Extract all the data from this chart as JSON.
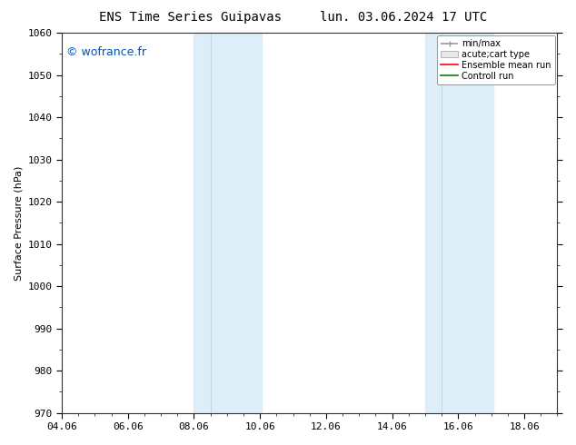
{
  "title_left": "ENS Time Series Guipavas",
  "title_right": "lun. 03.06.2024 17 UTC",
  "ylabel": "Surface Pressure (hPa)",
  "watermark": "© wofrance.fr",
  "ylim": [
    970,
    1060
  ],
  "yticks": [
    970,
    980,
    990,
    1000,
    1010,
    1020,
    1030,
    1040,
    1050,
    1060
  ],
  "xtick_labels": [
    "04.06",
    "06.06",
    "08.06",
    "10.06",
    "12.06",
    "14.06",
    "16.06",
    "18.06"
  ],
  "xtick_positions": [
    0,
    2,
    4,
    6,
    8,
    10,
    12,
    14
  ],
  "xlim": [
    0,
    15
  ],
  "shaded_bands": [
    {
      "x_start": 4.0,
      "x_end": 4.5,
      "color": "#deeef8"
    },
    {
      "x_start": 4.5,
      "x_end": 6.0,
      "color": "#deeef8"
    },
    {
      "x_start": 11.0,
      "x_end": 11.5,
      "color": "#deeef8"
    },
    {
      "x_start": 11.5,
      "x_end": 13.0,
      "color": "#deeef8"
    }
  ],
  "shaded_bands_simple": [
    {
      "x_start": 4.0,
      "x_end": 6.05,
      "color": "#deeef8"
    },
    {
      "x_start": 11.0,
      "x_end": 13.05,
      "color": "#deeef8"
    }
  ],
  "divider_lines": [
    {
      "x": 4.5,
      "color": "#c0d8ec"
    },
    {
      "x": 11.5,
      "color": "#c0d8ec"
    }
  ],
  "legend_entries": [
    {
      "label": "min/max",
      "color": "#999999"
    },
    {
      "label": "acute;cart type",
      "color": "#cccccc"
    },
    {
      "label": "Ensemble mean run",
      "color": "red"
    },
    {
      "label": "Controll run",
      "color": "green"
    }
  ],
  "background_color": "#ffffff",
  "plot_bg_color": "#ffffff",
  "title_fontsize": 10,
  "label_fontsize": 8,
  "tick_fontsize": 8,
  "watermark_color": "#0055bb",
  "watermark_fontsize": 9
}
